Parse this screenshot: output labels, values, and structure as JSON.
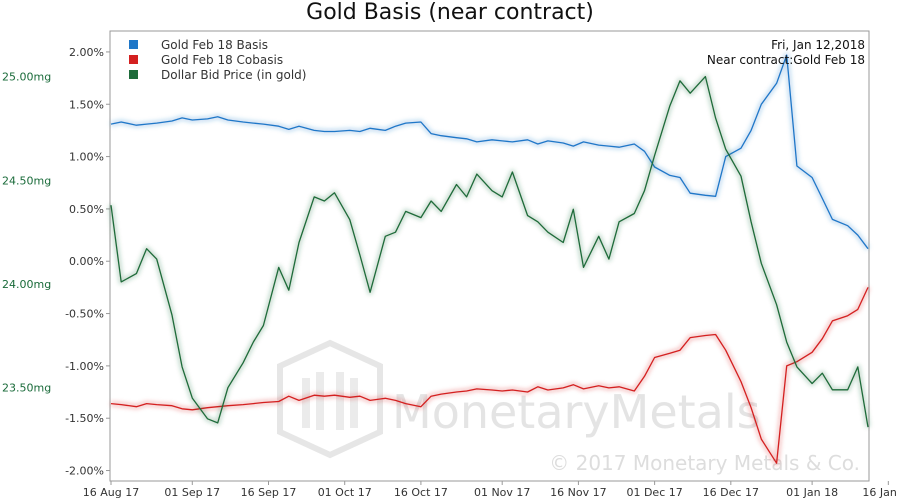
{
  "chart_data": {
    "type": "line",
    "title": "Gold Basis (near contract)",
    "x": [
      "2017-08-16",
      "2017-08-18",
      "2017-08-21",
      "2017-08-23",
      "2017-08-25",
      "2017-08-28",
      "2017-08-30",
      "2017-09-01",
      "2017-09-04",
      "2017-09-06",
      "2017-09-08",
      "2017-09-11",
      "2017-09-13",
      "2017-09-15",
      "2017-09-18",
      "2017-09-20",
      "2017-09-22",
      "2017-09-25",
      "2017-09-27",
      "2017-09-29",
      "2017-10-02",
      "2017-10-04",
      "2017-10-06",
      "2017-10-09",
      "2017-10-11",
      "2017-10-13",
      "2017-10-16",
      "2017-10-18",
      "2017-10-20",
      "2017-10-23",
      "2017-10-25",
      "2017-10-27",
      "2017-10-30",
      "2017-11-01",
      "2017-11-03",
      "2017-11-06",
      "2017-11-08",
      "2017-11-10",
      "2017-11-13",
      "2017-11-15",
      "2017-11-17",
      "2017-11-20",
      "2017-11-22",
      "2017-11-24",
      "2017-11-27",
      "2017-11-29",
      "2017-12-01",
      "2017-12-04",
      "2017-12-06",
      "2017-12-08",
      "2017-12-11",
      "2017-12-13",
      "2017-12-15",
      "2017-12-18",
      "2017-12-20",
      "2017-12-22",
      "2017-12-25",
      "2017-12-27",
      "2017-12-29",
      "2018-01-01",
      "2018-01-03",
      "2018-01-05",
      "2018-01-08",
      "2018-01-10",
      "2018-01-12"
    ],
    "series": [
      {
        "name": "Gold Feb 18 Basis",
        "axis": "left",
        "color": "#1f77c8",
        "values": [
          1.31,
          1.33,
          1.3,
          1.31,
          1.32,
          1.34,
          1.37,
          1.35,
          1.36,
          1.38,
          1.35,
          1.33,
          1.32,
          1.31,
          1.29,
          1.26,
          1.29,
          1.25,
          1.24,
          1.24,
          1.25,
          1.24,
          1.27,
          1.25,
          1.29,
          1.32,
          1.33,
          1.22,
          1.2,
          1.18,
          1.17,
          1.14,
          1.16,
          1.15,
          1.14,
          1.16,
          1.12,
          1.15,
          1.13,
          1.1,
          1.14,
          1.11,
          1.1,
          1.09,
          1.12,
          1.05,
          0.9,
          0.82,
          0.8,
          0.65,
          0.63,
          0.62,
          1.0,
          1.08,
          1.25,
          1.5,
          1.7,
          1.97,
          0.91,
          0.8,
          0.6,
          0.4,
          0.34,
          0.25,
          0.12
        ]
      },
      {
        "name": "Gold Feb 18 Cobasis",
        "axis": "left",
        "color": "#d42020",
        "values": [
          -1.36,
          -1.37,
          -1.39,
          -1.36,
          -1.37,
          -1.38,
          -1.41,
          -1.42,
          -1.4,
          -1.39,
          -1.38,
          -1.37,
          -1.36,
          -1.35,
          -1.34,
          -1.29,
          -1.33,
          -1.28,
          -1.29,
          -1.28,
          -1.3,
          -1.29,
          -1.33,
          -1.31,
          -1.33,
          -1.36,
          -1.39,
          -1.29,
          -1.27,
          -1.25,
          -1.24,
          -1.22,
          -1.23,
          -1.24,
          -1.23,
          -1.25,
          -1.2,
          -1.23,
          -1.21,
          -1.18,
          -1.22,
          -1.19,
          -1.21,
          -1.2,
          -1.24,
          -1.1,
          -0.92,
          -0.88,
          -0.85,
          -0.73,
          -0.71,
          -0.7,
          -0.85,
          -1.15,
          -1.4,
          -1.7,
          -1.93,
          -1.0,
          -0.96,
          -0.87,
          -0.74,
          -0.57,
          -0.52,
          -0.46,
          -0.25
        ]
      },
      {
        "name": "Dollar Bid Price (in gold)",
        "axis": "right",
        "color": "#1e6b3a",
        "values": [
          24.38,
          24.01,
          24.05,
          24.17,
          24.12,
          23.85,
          23.6,
          23.45,
          23.35,
          23.33,
          23.5,
          23.62,
          23.72,
          23.8,
          24.08,
          23.97,
          24.2,
          24.42,
          24.4,
          24.44,
          24.31,
          24.14,
          23.96,
          24.23,
          24.25,
          24.35,
          24.32,
          24.4,
          24.35,
          24.48,
          24.42,
          24.53,
          24.45,
          24.42,
          24.54,
          24.33,
          24.3,
          24.25,
          24.2,
          24.36,
          24.08,
          24.23,
          24.12,
          24.3,
          24.34,
          24.45,
          24.62,
          24.86,
          24.98,
          24.92,
          25.0,
          24.8,
          24.65,
          24.52,
          24.3,
          24.1,
          23.9,
          23.72,
          23.6,
          23.52,
          23.57,
          23.49,
          23.49,
          23.6,
          23.31
        ]
      }
    ],
    "y_left": {
      "ylim": [
        -2.1,
        2.2
      ],
      "ticks": [
        2.0,
        1.5,
        1.0,
        0.5,
        0.0,
        -0.5,
        -1.0,
        -1.5,
        -2.0
      ],
      "tick_labels": [
        "2.00%",
        "1.50%",
        "1.00%",
        "0.50%",
        "0.00%",
        "-0.50%",
        "-1.00%",
        "-1.50%",
        "-2.00%"
      ]
    },
    "y_right_labels": [
      {
        "value": 25.0,
        "label": "25.00mg"
      },
      {
        "value": 24.5,
        "label": "24.50mg"
      },
      {
        "value": 24.0,
        "label": "24.00mg"
      },
      {
        "value": 23.5,
        "label": "23.50mg"
      }
    ],
    "y_right_ylim": [
      23.05,
      25.22
    ],
    "x_ticks": [
      {
        "date": "2017-08-16",
        "label": "16 Aug 17"
      },
      {
        "date": "2017-09-01",
        "label": "01 Sep 17"
      },
      {
        "date": "2017-09-16",
        "label": "16 Sep 17"
      },
      {
        "date": "2017-10-01",
        "label": "01 Oct 17"
      },
      {
        "date": "2017-10-16",
        "label": "16 Oct 17"
      },
      {
        "date": "2017-11-01",
        "label": "01 Nov 17"
      },
      {
        "date": "2017-11-16",
        "label": "16 Nov 17"
      },
      {
        "date": "2017-12-01",
        "label": "01 Dec 17"
      },
      {
        "date": "2017-12-16",
        "label": "16 Dec 17"
      },
      {
        "date": "2018-01-01",
        "label": "01 Jan 18"
      },
      {
        "date": "2018-01-16",
        "label": "16 Jan 18"
      }
    ],
    "legend_placement": "top-left",
    "grid": false,
    "annotation": {
      "date_text": "Fri, Jan 12,2018",
      "contract_text": "Near contract:Gold Feb 18"
    },
    "watermark": {
      "brand": "MonetaryMetals",
      "copyright": "© 2017 Monetary Metals & Co."
    }
  }
}
